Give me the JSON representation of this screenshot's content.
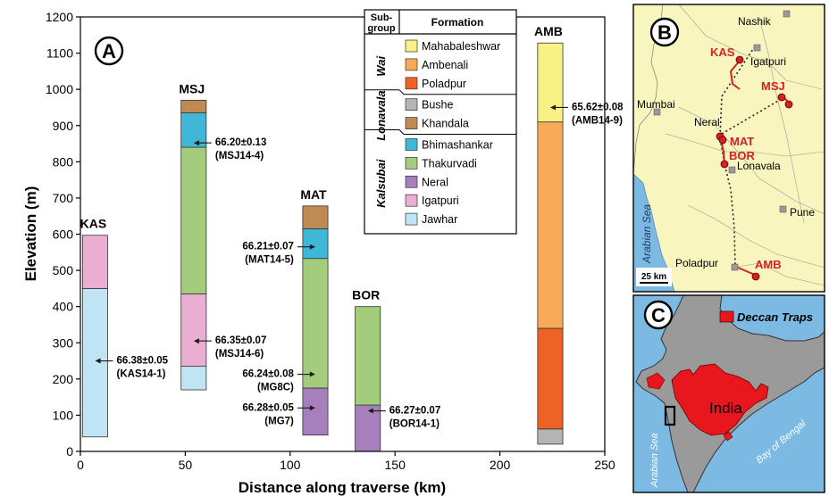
{
  "chart_data": [
    {
      "panel": "A",
      "type": "bar",
      "xlabel": "Distance along traverse (km)",
      "ylabel": "Elevation (m)",
      "xlim": [
        0,
        250
      ],
      "ylim": [
        0,
        1200
      ],
      "x_ticks": [
        0,
        50,
        100,
        150,
        200,
        250
      ],
      "y_ticks": [
        0,
        100,
        200,
        300,
        400,
        500,
        600,
        700,
        800,
        900,
        1000,
        1100,
        1200
      ],
      "formations": [
        {
          "key": "mahabaleshwar",
          "name": "Mahabaleshwar",
          "color": "#f8f184"
        },
        {
          "key": "ambenali",
          "name": "Ambenali",
          "color": "#f9aa59"
        },
        {
          "key": "poladpur",
          "name": "Poladpur",
          "color": "#ee6325"
        },
        {
          "key": "bushe",
          "name": "Bushe",
          "color": "#b5b5b5"
        },
        {
          "key": "khandala",
          "name": "Khandala",
          "color": "#c08a55"
        },
        {
          "key": "bhimashankar",
          "name": "Bhimashankar",
          "color": "#3fb7d6"
        },
        {
          "key": "thakurvadi",
          "name": "Thakurvadi",
          "color": "#a3cc7c"
        },
        {
          "key": "neral",
          "name": "Neral",
          "color": "#a67fbd"
        },
        {
          "key": "igatpuri",
          "name": "Igatpuri",
          "color": "#e9aed2"
        },
        {
          "key": "jawhar",
          "name": "Jawhar",
          "color": "#bfe4f3"
        }
      ],
      "legend": {
        "header_subgroup": "Sub-group",
        "header_formation": "Formation",
        "subgroups": [
          {
            "name": "Wai",
            "formations": [
              "mahabaleshwar",
              "ambenali",
              "poladpur"
            ]
          },
          {
            "name": "Lonavala",
            "formations": [
              "bushe",
              "khandala"
            ]
          },
          {
            "name": "Kalsubai",
            "formations": [
              "bhimashankar",
              "thakurvadi",
              "neral",
              "igatpuri",
              "jawhar"
            ]
          }
        ]
      },
      "sections": [
        {
          "name": "KAS",
          "x": 7,
          "width": 12,
          "segments": [
            {
              "formation": "jawhar",
              "from": 40,
              "to": 450
            },
            {
              "formation": "igatpuri",
              "from": 450,
              "to": 597
            }
          ]
        },
        {
          "name": "MSJ",
          "x": 54,
          "width": 12,
          "segments": [
            {
              "formation": "jawhar",
              "from": 170,
              "to": 235
            },
            {
              "formation": "igatpuri",
              "from": 235,
              "to": 435
            },
            {
              "formation": "thakurvadi",
              "from": 435,
              "to": 840
            },
            {
              "formation": "bhimashankar",
              "from": 840,
              "to": 935
            },
            {
              "formation": "khandala",
              "from": 935,
              "to": 970
            }
          ]
        },
        {
          "name": "MAT",
          "x": 112,
          "width": 12,
          "segments": [
            {
              "formation": "neral",
              "from": 45,
              "to": 175
            },
            {
              "formation": "thakurvadi",
              "from": 175,
              "to": 533
            },
            {
              "formation": "bhimashankar",
              "from": 533,
              "to": 615
            },
            {
              "formation": "khandala",
              "from": 615,
              "to": 678
            }
          ]
        },
        {
          "name": "BOR",
          "x": 137,
          "width": 12,
          "segments": [
            {
              "formation": "neral",
              "from": 0,
              "to": 128
            },
            {
              "formation": "thakurvadi",
              "from": 128,
              "to": 400
            }
          ]
        },
        {
          "name": "AMB",
          "x": 224,
          "width": 12,
          "segments": [
            {
              "formation": "bushe",
              "from": 20,
              "to": 62
            },
            {
              "formation": "poladpur",
              "from": 62,
              "to": 340
            },
            {
              "formation": "ambenali",
              "from": 340,
              "to": 910
            },
            {
              "formation": "mahabaleshwar",
              "from": 910,
              "to": 1128
            }
          ]
        }
      ],
      "dates": [
        {
          "age": "66.38±0.05",
          "sample": "(KAS14-1)",
          "x": 7,
          "y": 250,
          "side": "right"
        },
        {
          "age": "66.20±0.13",
          "sample": "(MSJ14-4)",
          "x": 54,
          "y": 852,
          "side": "right"
        },
        {
          "age": "66.35±0.07",
          "sample": "(MSJ14-6)",
          "x": 54,
          "y": 305,
          "side": "right"
        },
        {
          "age": "66.21±0.07",
          "sample": "(MAT14-5)",
          "x": 112,
          "y": 565,
          "side": "left"
        },
        {
          "age": "66.24±0.08",
          "sample": "(MG8C)",
          "x": 112,
          "y": 213,
          "side": "left"
        },
        {
          "age": "66.28±0.05",
          "sample": "(MG7)",
          "x": 112,
          "y": 120,
          "side": "left"
        },
        {
          "age": "66.27±0.07",
          "sample": "(BOR14-1)",
          "x": 137,
          "y": 112,
          "side": "right"
        },
        {
          "age": "65.62±0.08",
          "sample": "(AMB14-9)",
          "x": 224,
          "y": 950,
          "side": "right"
        }
      ]
    }
  ],
  "map_b": {
    "label": "B",
    "places": [
      "Nashik",
      "Igatpuri",
      "Mumbai",
      "Neral",
      "Lonavala",
      "Pune",
      "Poladpur"
    ],
    "sections": [
      "KAS",
      "MSJ",
      "MAT",
      "BOR",
      "AMB"
    ],
    "sea": "Arabian Sea",
    "scale": "25 km",
    "section_color": "#d42027"
  },
  "map_c": {
    "label": "C",
    "legend_text": "Deccan Traps",
    "country": "India",
    "sea_west": "Arabian Sea",
    "sea_east": "Bay of Bengal"
  },
  "colors": {
    "sea": "#7cb9e3",
    "land_map_b": "#f9f5be",
    "land_map_c": "#9a9a9a",
    "traps": "#e8171e",
    "date_marker": "#1a1a1a"
  }
}
